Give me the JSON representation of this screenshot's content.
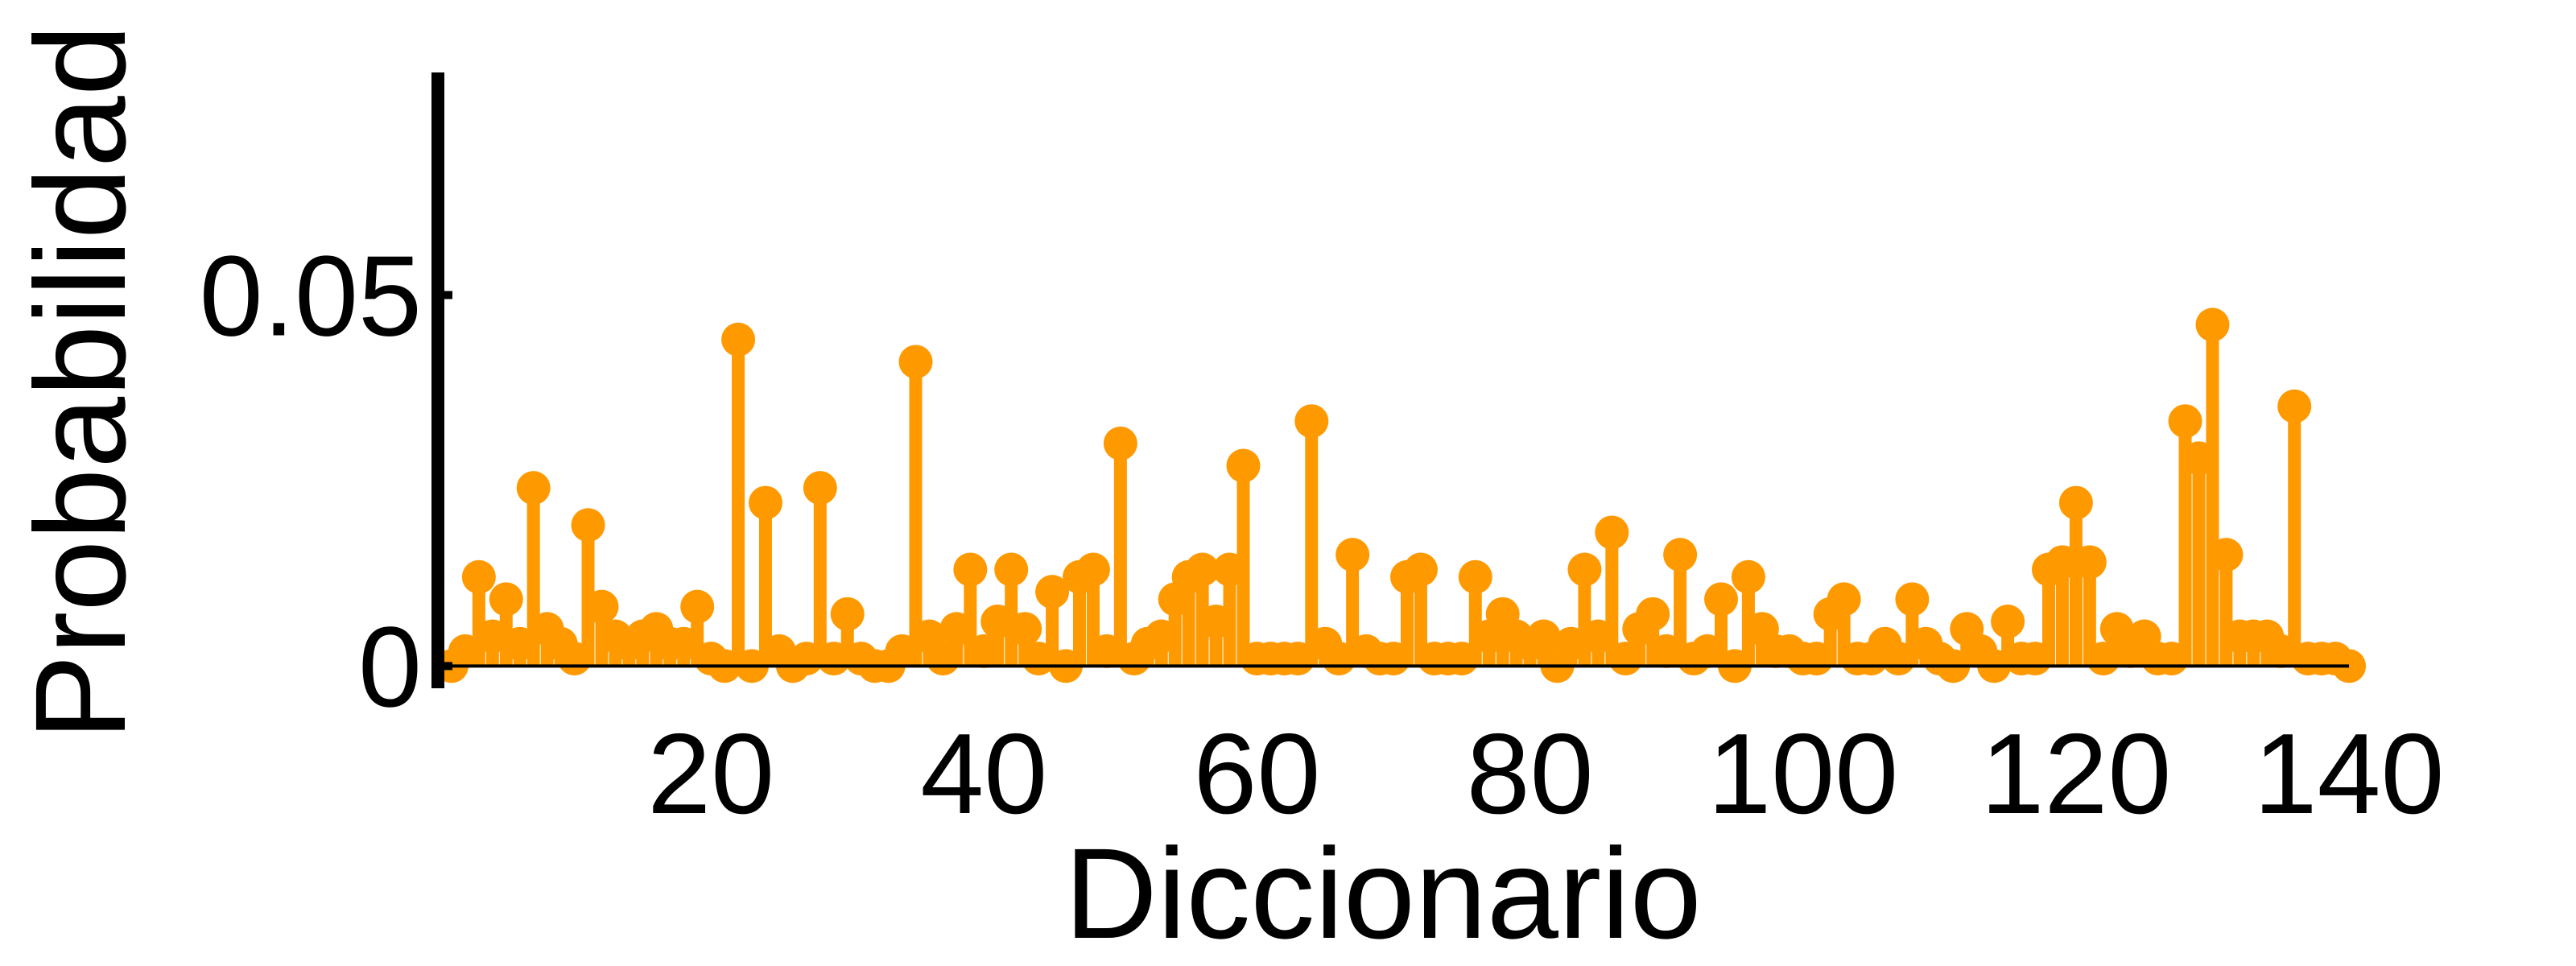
{
  "chart_data": {
    "type": "stem",
    "title": "",
    "xlabel": "Diccionario",
    "ylabel": "Probabilidad",
    "xlim": [
      0,
      141
    ],
    "ylim": [
      -0.003,
      0.08
    ],
    "xticks": [
      20,
      40,
      60,
      80,
      100,
      120,
      140
    ],
    "xtick_labels": [
      "20",
      "40",
      "60",
      "80",
      "100",
      "120",
      "140"
    ],
    "yticks": [
      0,
      0.05
    ],
    "ytick_labels": [
      "0",
      "0.05"
    ],
    "grid": false,
    "color": "#ff9900",
    "baseline_color": "#000000",
    "x": [
      1,
      2,
      3,
      4,
      5,
      6,
      7,
      8,
      9,
      10,
      11,
      12,
      13,
      14,
      15,
      16,
      17,
      18,
      19,
      20,
      21,
      22,
      23,
      24,
      25,
      26,
      27,
      28,
      29,
      30,
      31,
      32,
      33,
      34,
      35,
      36,
      37,
      38,
      39,
      40,
      41,
      42,
      43,
      44,
      45,
      46,
      47,
      48,
      49,
      50,
      51,
      52,
      53,
      54,
      55,
      56,
      57,
      58,
      59,
      60,
      61,
      62,
      63,
      64,
      65,
      66,
      67,
      68,
      69,
      70,
      71,
      72,
      73,
      74,
      75,
      76,
      77,
      78,
      79,
      80,
      81,
      82,
      83,
      84,
      85,
      86,
      87,
      88,
      89,
      90,
      91,
      92,
      93,
      94,
      95,
      96,
      97,
      98,
      99,
      100,
      101,
      102,
      103,
      104,
      105,
      106,
      107,
      108,
      109,
      110,
      111,
      112,
      113,
      114,
      115,
      116,
      117,
      118,
      119,
      120,
      121,
      122,
      123,
      124,
      125,
      126,
      127,
      128,
      129,
      130,
      131,
      132,
      133,
      134,
      135,
      136,
      137,
      138,
      139,
      140
    ],
    "values": [
      0.0,
      0.002,
      0.012,
      0.004,
      0.009,
      0.003,
      0.024,
      0.005,
      0.003,
      0.001,
      0.019,
      0.008,
      0.004,
      0.003,
      0.004,
      0.005,
      0.003,
      0.003,
      0.008,
      0.001,
      0.0,
      0.044,
      0.0,
      0.022,
      0.002,
      0.0,
      0.001,
      0.024,
      0.001,
      0.007,
      0.001,
      0.0,
      0.0,
      0.002,
      0.041,
      0.004,
      0.001,
      0.005,
      0.013,
      0.002,
      0.006,
      0.013,
      0.005,
      0.001,
      0.01,
      0.0,
      0.012,
      0.013,
      0.002,
      0.03,
      0.001,
      0.003,
      0.004,
      0.009,
      0.012,
      0.013,
      0.006,
      0.013,
      0.027,
      0.001,
      0.001,
      0.001,
      0.001,
      0.033,
      0.003,
      0.001,
      0.015,
      0.002,
      0.001,
      0.001,
      0.012,
      0.013,
      0.001,
      0.001,
      0.001,
      0.012,
      0.004,
      0.007,
      0.004,
      0.003,
      0.004,
      0.0,
      0.003,
      0.013,
      0.004,
      0.018,
      0.001,
      0.005,
      0.007,
      0.002,
      0.015,
      0.001,
      0.002,
      0.009,
      0.0,
      0.012,
      0.005,
      0.002,
      0.002,
      0.001,
      0.001,
      0.007,
      0.009,
      0.001,
      0.001,
      0.003,
      0.001,
      0.009,
      0.003,
      0.001,
      0.0,
      0.005,
      0.002,
      0.0,
      0.006,
      0.001,
      0.001,
      0.013,
      0.014,
      0.022,
      0.014,
      0.001,
      0.005,
      0.002,
      0.004,
      0.001,
      0.001,
      0.033,
      0.028,
      0.046,
      0.015,
      0.004,
      0.004,
      0.004,
      0.002,
      0.035,
      0.001,
      0.001,
      0.001,
      0.0
    ]
  }
}
